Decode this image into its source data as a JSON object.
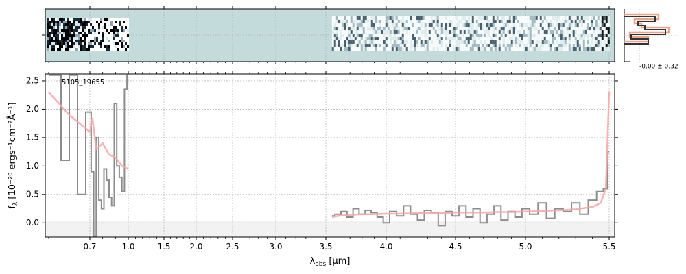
{
  "chart_data": {
    "type": "line",
    "object_id": "5105_19655",
    "xlabel_main": "λ",
    "xlabel_sub": "obs",
    "xlabel_unit": " [μm]",
    "ylabel": "f",
    "ylabel_sub": "λ",
    "ylabel_unit": " [10⁻²⁰ ergs⁻¹cm⁻²Å⁻¹]",
    "ylim": [
      -0.25,
      2.62
    ],
    "y_ticks": [
      0.0,
      0.5,
      1.0,
      1.5,
      2.0,
      2.5
    ],
    "y_tick_labels": [
      "0.0",
      "0.5",
      "1.0",
      "1.5",
      "2.0",
      "2.5"
    ],
    "x_scale": "piecewise (prism resolution)",
    "x_ticks": [
      0.7,
      1.0,
      1.5,
      2.0,
      2.5,
      3.0,
      3.5,
      4.0,
      4.5,
      5.0,
      5.5
    ],
    "x_tick_labels": [
      "0.7",
      "1.0",
      "1.5",
      "2.0",
      "2.5",
      "3.0",
      "3.5",
      "4.0",
      "4.5",
      "5.0",
      "5.5"
    ],
    "grid": true,
    "histogram_label": "-0.00 ± 0.32",
    "colors": {
      "data": "#8c8c8c",
      "model": "#f4a6a6",
      "model_line": "#e06060",
      "spectrum_bg": "#c4dbdb",
      "hist_dark": "#333333",
      "hist_light": "#e8a48c"
    },
    "series": [
      {
        "role": "data",
        "x": [
          0.6,
          0.62,
          0.64,
          0.66,
          0.68,
          0.7,
          0.72,
          0.74,
          0.76,
          0.78,
          0.8,
          0.82,
          0.84,
          0.86,
          0.88,
          0.9,
          0.92,
          0.94,
          0.96,
          0.98,
          1.0,
          3.55,
          3.6,
          3.65,
          3.7,
          3.75,
          3.8,
          3.85,
          3.9,
          3.95,
          4.0,
          4.05,
          4.1,
          4.15,
          4.2,
          4.25,
          4.3,
          4.35,
          4.4,
          4.45,
          4.5,
          4.55,
          4.6,
          4.65,
          4.7,
          4.75,
          4.8,
          4.85,
          4.9,
          4.95,
          5.0,
          5.05,
          5.1,
          5.15,
          5.2,
          5.25,
          5.3,
          5.35,
          5.4,
          5.45,
          5.48,
          5.5
        ],
        "y": [
          2.6,
          2.6,
          1.1,
          2.6,
          0.5,
          1.95,
          0.9,
          -0.25,
          1.5,
          0.4,
          0.25,
          0.95,
          0.75,
          0.45,
          0.3,
          2.1,
          1.0,
          0.8,
          0.55,
          2.35,
          2.6,
          0.12,
          0.15,
          0.2,
          0.1,
          0.25,
          0.15,
          0.22,
          0.18,
          0.1,
          0.0,
          0.2,
          0.12,
          0.3,
          0.15,
          0.05,
          0.22,
          0.18,
          -0.05,
          0.2,
          0.12,
          0.3,
          0.1,
          0.25,
          0.0,
          0.15,
          0.3,
          0.05,
          0.2,
          0.1,
          0.25,
          0.15,
          0.35,
          0.08,
          0.25,
          0.2,
          0.35,
          0.15,
          0.4,
          0.55,
          0.6,
          1.25
        ]
      },
      {
        "role": "model",
        "x": [
          0.6,
          0.65,
          0.7,
          0.72,
          0.75,
          0.8,
          0.85,
          0.9,
          0.95,
          1.0,
          3.55,
          3.6,
          3.7,
          3.8,
          3.9,
          4.0,
          4.1,
          4.2,
          4.3,
          4.4,
          4.5,
          4.6,
          4.7,
          4.8,
          4.9,
          5.0,
          5.1,
          5.2,
          5.3,
          5.4,
          5.45,
          5.48,
          5.5
        ],
        "y": [
          2.3,
          1.9,
          1.6,
          1.85,
          1.3,
          1.4,
          1.2,
          1.15,
          1.0,
          0.95,
          0.1,
          0.12,
          0.14,
          0.15,
          0.15,
          0.16,
          0.16,
          0.17,
          0.17,
          0.17,
          0.18,
          0.18,
          0.18,
          0.19,
          0.19,
          0.2,
          0.21,
          0.22,
          0.24,
          0.28,
          0.35,
          0.6,
          2.3
        ]
      }
    ]
  }
}
